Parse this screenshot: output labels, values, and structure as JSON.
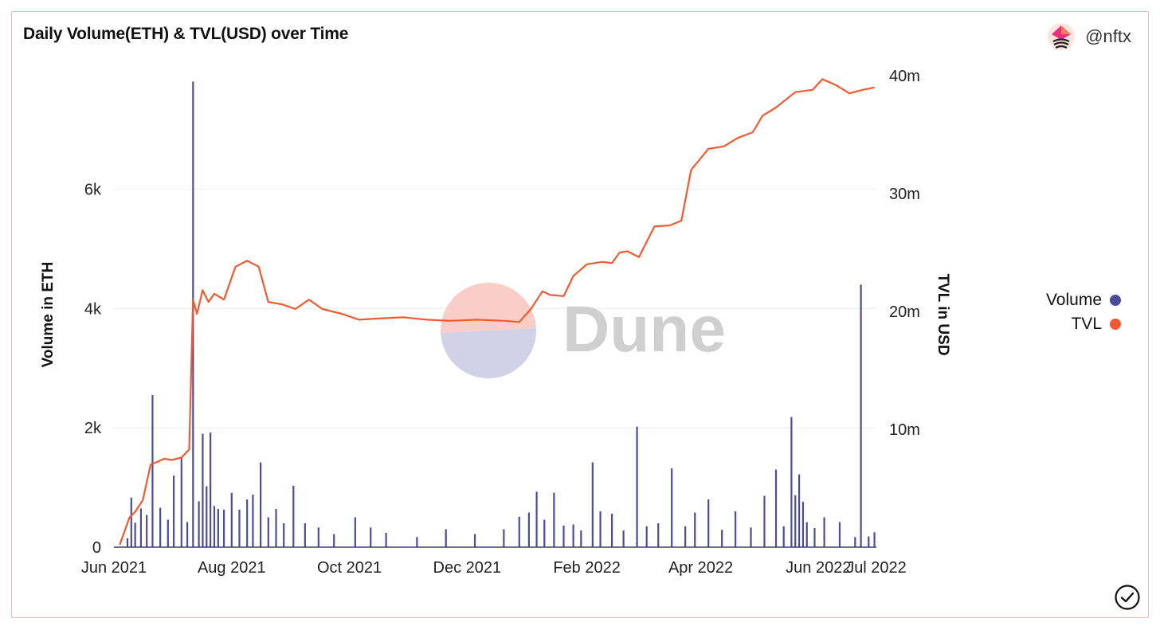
{
  "header": {
    "title": "Daily Volume(ETH) & TVL(USD) over Time",
    "brand": "@nftx"
  },
  "watermark": "Dune",
  "legend": [
    {
      "label": "Volume",
      "color": "#4d4c98"
    },
    {
      "label": "TVL",
      "color": "#f05a30"
    }
  ],
  "chart_data": {
    "type": "bar+line",
    "title": "Daily Volume(ETH) & TVL(USD) over Time",
    "xlabel": "",
    "ylabel": "Volume in ETH",
    "y2label": "TVL in USD",
    "x_ticks": [
      "Jun 2021",
      "Aug 2021",
      "Oct 2021",
      "Dec 2021",
      "Feb 2022",
      "Apr 2022",
      "Jun 2022",
      "Jul 2022"
    ],
    "x_tick_dates": [
      "2021-06-01",
      "2021-08-01",
      "2021-10-01",
      "2021-12-01",
      "2022-02-01",
      "2022-04-01",
      "2022-06-01",
      "2022-07-01"
    ],
    "y_ticks": [
      0,
      2000,
      4000,
      6000
    ],
    "y_tick_labels": [
      "0",
      "2k",
      "4k",
      "6k"
    ],
    "y2_ticks": [
      10000000,
      20000000,
      30000000,
      40000000
    ],
    "y2_tick_labels": [
      "10m",
      "20m",
      "30m",
      "40m"
    ],
    "ylim": [
      0,
      7900
    ],
    "y2lim": [
      0,
      40000000
    ],
    "grid": true,
    "legend_position": "right",
    "series": [
      {
        "name": "Volume",
        "axis": "left",
        "type": "bar",
        "color": "#4d4c98",
        "x": [
          "2021-06-08",
          "2021-06-10",
          "2021-06-12",
          "2021-06-15",
          "2021-06-18",
          "2021-06-21",
          "2021-06-25",
          "2021-06-29",
          "2021-07-02",
          "2021-07-06",
          "2021-07-09",
          "2021-07-12",
          "2021-07-15",
          "2021-07-17",
          "2021-07-19",
          "2021-07-21",
          "2021-07-23",
          "2021-07-25",
          "2021-07-28",
          "2021-08-01",
          "2021-08-05",
          "2021-08-09",
          "2021-08-12",
          "2021-08-16",
          "2021-08-20",
          "2021-08-24",
          "2021-08-28",
          "2021-09-02",
          "2021-09-08",
          "2021-09-15",
          "2021-09-23",
          "2021-10-04",
          "2021-10-12",
          "2021-10-20",
          "2021-11-05",
          "2021-11-20",
          "2021-12-05",
          "2021-12-20",
          "2021-12-28",
          "2022-01-02",
          "2022-01-06",
          "2022-01-10",
          "2022-01-15",
          "2022-01-20",
          "2022-01-25",
          "2022-01-29",
          "2022-02-04",
          "2022-02-08",
          "2022-02-14",
          "2022-02-20",
          "2022-02-27",
          "2022-03-04",
          "2022-03-10",
          "2022-03-17",
          "2022-03-24",
          "2022-03-29",
          "2022-04-05",
          "2022-04-12",
          "2022-04-19",
          "2022-04-27",
          "2022-05-04",
          "2022-05-10",
          "2022-05-14",
          "2022-05-18",
          "2022-05-20",
          "2022-05-22",
          "2022-05-24",
          "2022-05-26",
          "2022-05-30",
          "2022-06-04",
          "2022-06-12",
          "2022-06-20",
          "2022-06-23",
          "2022-06-27",
          "2022-06-30"
        ],
        "values": [
          150,
          830,
          410,
          650,
          540,
          2550,
          660,
          460,
          1200,
          1500,
          420,
          7800,
          770,
          1900,
          1020,
          1920,
          690,
          640,
          630,
          910,
          630,
          800,
          880,
          1420,
          500,
          640,
          400,
          1030,
          400,
          330,
          220,
          500,
          330,
          240,
          170,
          300,
          220,
          300,
          510,
          580,
          930,
          460,
          910,
          360,
          380,
          280,
          1420,
          600,
          560,
          280,
          2020,
          350,
          400,
          1320,
          350,
          580,
          800,
          290,
          600,
          330,
          860,
          1300,
          350,
          2180,
          870,
          1220,
          760,
          420,
          320,
          500,
          420,
          170,
          4400,
          180,
          250
        ]
      },
      {
        "name": "TVL",
        "axis": "right",
        "type": "line",
        "color": "#f05a30",
        "x": [
          "2021-06-04",
          "2021-06-09",
          "2021-06-12",
          "2021-06-16",
          "2021-06-20",
          "2021-06-23",
          "2021-06-27",
          "2021-07-01",
          "2021-07-06",
          "2021-07-10",
          "2021-07-12",
          "2021-07-14",
          "2021-07-17",
          "2021-07-20",
          "2021-07-23",
          "2021-07-28",
          "2021-08-03",
          "2021-08-09",
          "2021-08-15",
          "2021-08-20",
          "2021-08-27",
          "2021-09-03",
          "2021-09-10",
          "2021-09-17",
          "2021-09-27",
          "2021-10-06",
          "2021-10-16",
          "2021-10-29",
          "2021-11-10",
          "2021-11-22",
          "2021-12-06",
          "2021-12-20",
          "2021-12-28",
          "2022-01-03",
          "2022-01-09",
          "2022-01-13",
          "2022-01-20",
          "2022-01-25",
          "2022-02-01",
          "2022-02-09",
          "2022-02-14",
          "2022-02-18",
          "2022-02-22",
          "2022-02-28",
          "2022-03-08",
          "2022-03-16",
          "2022-03-22",
          "2022-03-27",
          "2022-04-05",
          "2022-04-13",
          "2022-04-20",
          "2022-04-28",
          "2022-05-03",
          "2022-05-10",
          "2022-05-20",
          "2022-05-29",
          "2022-06-03",
          "2022-06-10",
          "2022-06-17",
          "2022-06-24",
          "2022-06-30"
        ],
        "values": [
          200000,
          2500000,
          3000000,
          4000000,
          7000000,
          7200000,
          7500000,
          7400000,
          7600000,
          8300000,
          21000000,
          19800000,
          21800000,
          20800000,
          21500000,
          21000000,
          23800000,
          24300000,
          23800000,
          20800000,
          20600000,
          20200000,
          21000000,
          20200000,
          19800000,
          19300000,
          19400000,
          19500000,
          19300000,
          19200000,
          19300000,
          19200000,
          19100000,
          20200000,
          21700000,
          21400000,
          21300000,
          23000000,
          24000000,
          24200000,
          24100000,
          25000000,
          25100000,
          24600000,
          27200000,
          27300000,
          27700000,
          32000000,
          33800000,
          34000000,
          34700000,
          35200000,
          36600000,
          37300000,
          38600000,
          38800000,
          39700000,
          39200000,
          38500000,
          38800000,
          39000000
        ]
      }
    ]
  }
}
